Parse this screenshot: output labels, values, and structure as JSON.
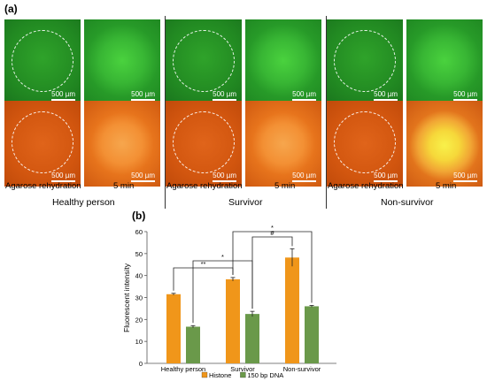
{
  "panel_a": {
    "label": "(a)",
    "scale_text": "500 µm",
    "captions": {
      "rehydration": "Agarose rehydration",
      "five_min": "5 min"
    },
    "groups": [
      "Healthy person",
      "Survivor",
      "Non-survivor"
    ]
  },
  "panel_b": {
    "label": "(b)"
  },
  "chart_data": {
    "type": "bar",
    "categories": [
      "Healthy person",
      "Survivor",
      "Non-survivor"
    ],
    "series": [
      {
        "name": "Histone",
        "values": [
          31.5,
          38.3,
          48.2
        ],
        "errors": [
          0.4,
          0.8,
          4.0
        ],
        "color": "#f0961a"
      },
      {
        "name": "150 bp DNA",
        "values": [
          16.7,
          22.5,
          26.0
        ],
        "errors": [
          0.5,
          1.2,
          0.4
        ],
        "color": "#6a994a"
      }
    ],
    "ylabel": "Fluorescent intensity",
    "ylim": [
      0,
      60
    ],
    "yticks": [
      0,
      10,
      20,
      30,
      40,
      50,
      60
    ],
    "legend_position": "bottom",
    "annotations": [
      {
        "text": "**",
        "from": "Healthy person Histone",
        "to": "Survivor Histone"
      },
      {
        "text": "*",
        "from": "Healthy person 150 bp DNA",
        "to": "Survivor 150 bp DNA"
      },
      {
        "text": "#",
        "from": "Survivor 150 bp DNA",
        "to": "Non-survivor Histone"
      },
      {
        "text": "*",
        "from": "Survivor Histone",
        "to": "Non-survivor 150 bp DNA"
      }
    ]
  }
}
